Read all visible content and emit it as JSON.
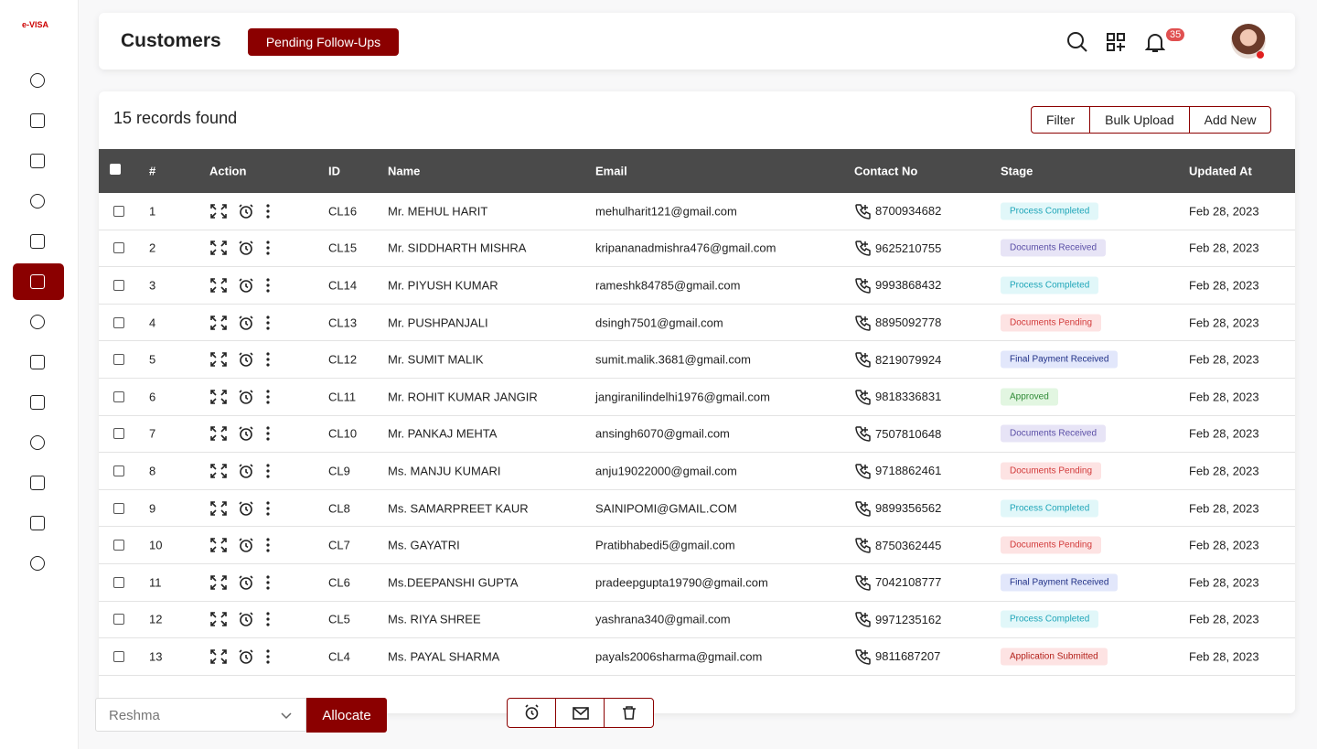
{
  "logo": {
    "text": "e-VISA"
  },
  "header": {
    "title": "Customers",
    "tab": "Pending Follow-Ups",
    "notifications": 35
  },
  "records": {
    "summary": "15 records found",
    "buttons": [
      "Filter",
      "Bulk Upload",
      "Add New"
    ]
  },
  "table": {
    "columns": [
      "#",
      "Action",
      "ID",
      "Name",
      "Email",
      "Contact No",
      "Stage",
      "Updated At"
    ],
    "rows": [
      [
        "1",
        "CL16",
        "Mr. MEHUL HARIT",
        "mehulharit121@gmail.com",
        "8700934682",
        "Process Completed",
        "Feb 28, 2023"
      ],
      [
        "2",
        "CL15",
        "Mr. SIDDHARTH MISHRA",
        "kripananadmishra476@gmail.com",
        "9625210755",
        "Documents Received",
        "Feb 28, 2023"
      ],
      [
        "3",
        "CL14",
        "Mr. PIYUSH KUMAR",
        "rameshk84785@gmail.com",
        "9993868432",
        "Process Completed",
        "Feb 28, 2023"
      ],
      [
        "4",
        "CL13",
        "Mr. PUSHPANJALI",
        "dsingh7501@gmail.com",
        "8895092778",
        "Documents Pending",
        "Feb 28, 2023"
      ],
      [
        "5",
        "CL12",
        "Mr. SUMIT MALIK",
        "sumit.malik.3681@gmail.com",
        "8219079924",
        "Final Payment Received",
        "Feb 28, 2023"
      ],
      [
        "6",
        "CL11",
        "Mr. ROHIT KUMAR JANGIR",
        "jangiranilindelhi1976@gmail.com",
        "9818336831",
        "Approved",
        "Feb 28, 2023"
      ],
      [
        "7",
        "CL10",
        "Mr. PANKAJ MEHTA",
        "ansingh6070@gmail.com",
        "7507810648",
        "Documents Received",
        "Feb 28, 2023"
      ],
      [
        "8",
        "CL9",
        "Ms. MANJU KUMARI",
        "anju19022000@gmail.com",
        "9718862461",
        "Documents Pending",
        "Feb 28, 2023"
      ],
      [
        "9",
        "CL8",
        "Ms. SAMARPREET KAUR",
        "SAINIPOMI@GMAIL.COM",
        "9899356562",
        "Process Completed",
        "Feb 28, 2023"
      ],
      [
        "10",
        "CL7",
        "Ms. GAYATRI",
        "Pratibhabedi5@gmail.com",
        "8750362445",
        "Documents Pending",
        "Feb 28, 2023"
      ],
      [
        "11",
        "CL6",
        "Ms.DEEPANSHI GUPTA",
        "pradeepgupta19790@gmail.com",
        "7042108777",
        "Final Payment Received",
        "Feb 28, 2023"
      ],
      [
        "12",
        "CL5",
        "Ms. RIYA SHREE",
        "yashrana340@gmail.com",
        "9971235162",
        "Process Completed",
        "Feb 28, 2023"
      ],
      [
        "13",
        "CL4",
        "Ms. PAYAL SHARMA",
        "payals2006sharma@gmail.com",
        "9811687207",
        "Application Submitted",
        "Feb 28, 2023"
      ]
    ],
    "stage_colors": {
      "Process Completed": [
        "#e1f7f9",
        "#1ea5b8"
      ],
      "Documents Received": [
        "#e7e4f6",
        "#5a4ea6"
      ],
      "Documents Pending": [
        "#fde3e3",
        "#d23a3a"
      ],
      "Final Payment Received": [
        "#e2e7fb",
        "#1f2f86"
      ],
      "Approved": [
        "#e2f6e1",
        "#2f8a36"
      ],
      "Application Submitted": [
        "#fde3e3",
        "#b3201a"
      ]
    }
  },
  "footer": {
    "assignee": "Reshma",
    "allocate": "Allocate"
  }
}
